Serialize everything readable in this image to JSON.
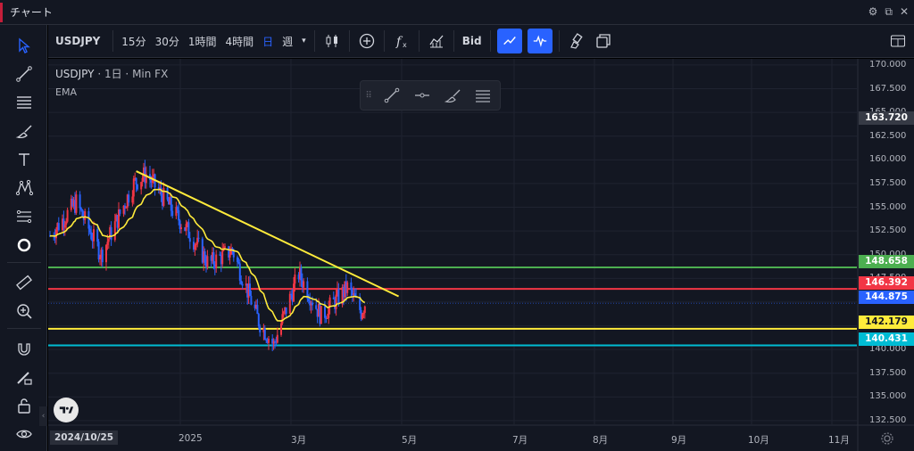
{
  "window": {
    "title": "チャート"
  },
  "toolbar": {
    "symbol": "USDJPY",
    "intervals": [
      "15分",
      "30分",
      "1時間",
      "4時間",
      "日",
      "週"
    ],
    "active_interval": "日",
    "price_type": "Bid"
  },
  "legend": {
    "symbol": "USDJPY",
    "interval": "1日",
    "source": "Min FX",
    "indicator": "EMA"
  },
  "price_axis": {
    "ticks": [
      "170.000",
      "167.500",
      "165.000",
      "162.500",
      "160.000",
      "157.500",
      "155.000",
      "152.500",
      "150.000",
      "147.500",
      "145.000",
      "142.500",
      "140.000",
      "137.500",
      "135.000",
      "132.500"
    ],
    "current_price": "163.720",
    "levels": [
      {
        "label": "148.658",
        "color": "#4caf50"
      },
      {
        "label": "146.392",
        "color": "#f23645"
      },
      {
        "label": "144.875",
        "color": "#2962ff"
      },
      {
        "label": "142.179",
        "color": "#ffeb3b"
      },
      {
        "label": "140.431",
        "color": "#00bcd4"
      }
    ]
  },
  "time_axis": {
    "start_label": "2024/10/25",
    "ticks": [
      "2025",
      "3月",
      "5月",
      "7月",
      "8月",
      "9月",
      "10月",
      "11月"
    ]
  },
  "chart_data": {
    "type": "candlestick",
    "series": [
      {
        "name": "USDJPY",
        "approx_path": [
          {
            "x": "2024-10-25",
            "y": 152.0
          },
          {
            "x": "2024-11-15",
            "y": 155.5
          },
          {
            "x": "2024-12-05",
            "y": 150.0
          },
          {
            "x": "2024-12-31",
            "y": 157.5
          },
          {
            "x": "2025-01-10",
            "y": 158.5
          },
          {
            "x": "2025-02-01",
            "y": 154.5
          },
          {
            "x": "2025-02-15",
            "y": 152.0
          },
          {
            "x": "2025-03-01",
            "y": 149.0
          },
          {
            "x": "2025-03-20",
            "y": 150.5
          },
          {
            "x": "2025-04-10",
            "y": 143.0
          },
          {
            "x": "2025-04-22",
            "y": 140.5
          },
          {
            "x": "2025-05-12",
            "y": 148.0
          },
          {
            "x": "2025-05-30",
            "y": 143.5
          },
          {
            "x": "2025-06-20",
            "y": 146.5
          },
          {
            "x": "2025-07-01",
            "y": 144.0
          },
          {
            "x": "2025-07-04",
            "y": 144.9
          }
        ]
      },
      {
        "name": "EMA",
        "color": "#ffeb3b"
      }
    ],
    "horizontal_levels": [
      148.658,
      146.392,
      142.179,
      140.431
    ],
    "trendline": {
      "from": {
        "x": "2025-01-02",
        "y": 158.8
      },
      "to": {
        "x": "2025-07-31",
        "y": 145.6
      },
      "color": "#ffeb3b"
    },
    "ylim": [
      130.0,
      170.5
    ]
  }
}
